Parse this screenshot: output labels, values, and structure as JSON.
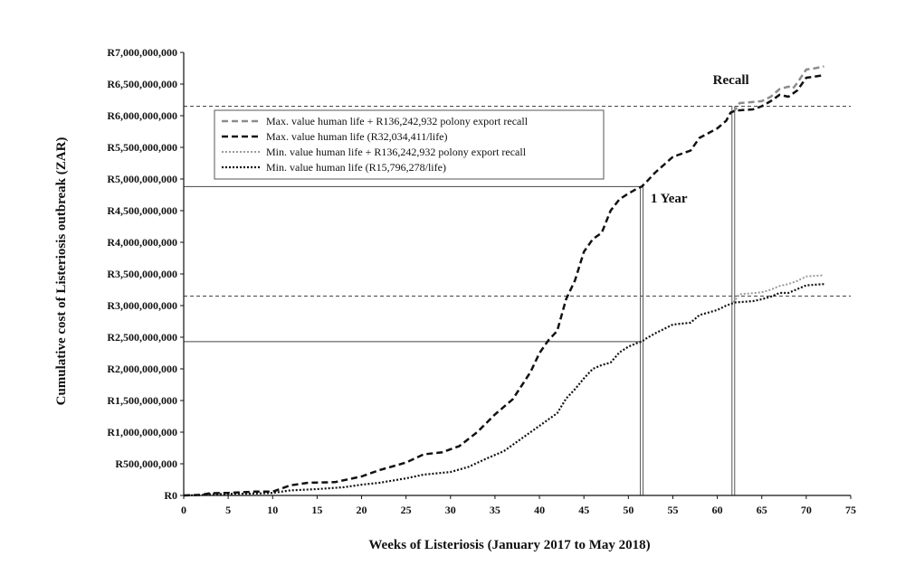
{
  "chart_data": {
    "type": "line",
    "title": "",
    "xlabel": "Weeks of Listeriosis (January 2017 to May 2018)",
    "ylabel": "Cumulative cost of Listeriosis outbreak (ZAR)",
    "xlim": [
      0,
      75
    ],
    "ylim": [
      0,
      7000000000
    ],
    "x_ticks": [
      "0",
      "5",
      "10",
      "15",
      "20",
      "25",
      "30",
      "35",
      "40",
      "45",
      "50",
      "55",
      "60",
      "65",
      "70",
      "75"
    ],
    "y_ticks": [
      "R0",
      "R500,000,000",
      "R1,000,000,000",
      "R1,500,000,000",
      "R2,000,000,000",
      "R2,500,000,000",
      "R3,000,000,000",
      "R3,500,000,000",
      "R4,000,000,000",
      "R4,500,000,000",
      "R5,000,000,000",
      "R5,500,000,000",
      "R6,000,000,000",
      "R6,500,000,000",
      "R7,000,000,000"
    ],
    "legend": {
      "position": "top-left"
    },
    "series": [
      {
        "name": "Max. value human life + R136,242,932 polony export recall",
        "color": "#8c8c8c",
        "dash": "dashed",
        "width": 2.5,
        "points": [
          [
            61.8,
            6050000000
          ],
          [
            62.5,
            6200000000
          ],
          [
            63.5,
            6210000000
          ],
          [
            65,
            6230000000
          ],
          [
            66,
            6300000000
          ],
          [
            67,
            6420000000
          ],
          [
            68,
            6460000000
          ],
          [
            68.5,
            6430000000
          ],
          [
            69,
            6520000000
          ],
          [
            70,
            6730000000
          ],
          [
            71,
            6750000000
          ],
          [
            72,
            6780000000
          ]
        ]
      },
      {
        "name": "Max. value human life (R32,034,411/life)",
        "color": "#111111",
        "dash": "dashed",
        "width": 2.5,
        "points": [
          [
            0,
            0
          ],
          [
            2,
            10000000
          ],
          [
            3,
            35000000
          ],
          [
            5,
            40000000
          ],
          [
            8,
            60000000
          ],
          [
            10,
            60000000
          ],
          [
            12,
            160000000
          ],
          [
            14,
            200000000
          ],
          [
            17,
            210000000
          ],
          [
            20,
            300000000
          ],
          [
            22,
            400000000
          ],
          [
            25,
            520000000
          ],
          [
            27,
            650000000
          ],
          [
            29,
            680000000
          ],
          [
            31,
            780000000
          ],
          [
            33,
            1000000000
          ],
          [
            35,
            1280000000
          ],
          [
            37,
            1520000000
          ],
          [
            39,
            1950000000
          ],
          [
            40,
            2250000000
          ],
          [
            41,
            2450000000
          ],
          [
            42,
            2600000000
          ],
          [
            43,
            3100000000
          ],
          [
            44,
            3400000000
          ],
          [
            45,
            3850000000
          ],
          [
            46,
            4050000000
          ],
          [
            47,
            4150000000
          ],
          [
            48,
            4500000000
          ],
          [
            49,
            4680000000
          ],
          [
            50,
            4770000000
          ],
          [
            51,
            4850000000
          ],
          [
            51.5,
            4880000000
          ],
          [
            52,
            4950000000
          ],
          [
            53,
            5100000000
          ],
          [
            55,
            5350000000
          ],
          [
            56,
            5400000000
          ],
          [
            57,
            5450000000
          ],
          [
            58,
            5650000000
          ],
          [
            60,
            5800000000
          ],
          [
            61,
            5920000000
          ],
          [
            61.5,
            6050000000
          ],
          [
            62,
            6080000000
          ],
          [
            64,
            6100000000
          ],
          [
            65,
            6150000000
          ],
          [
            66,
            6230000000
          ],
          [
            67,
            6330000000
          ],
          [
            68,
            6300000000
          ],
          [
            69,
            6400000000
          ],
          [
            70,
            6600000000
          ],
          [
            71,
            6620000000
          ],
          [
            72,
            6640000000
          ]
        ]
      },
      {
        "name": "Min. value human life + R136,242,932 polony export recall",
        "color": "#9a9a9a",
        "dash": "dotted",
        "width": 2,
        "points": [
          [
            61.8,
            3050000000
          ],
          [
            62.5,
            3180000000
          ],
          [
            63.5,
            3190000000
          ],
          [
            65,
            3210000000
          ],
          [
            66,
            3250000000
          ],
          [
            67,
            3310000000
          ],
          [
            68,
            3340000000
          ],
          [
            69,
            3390000000
          ],
          [
            70,
            3460000000
          ],
          [
            71,
            3470000000
          ],
          [
            72,
            3480000000
          ]
        ]
      },
      {
        "name": "Min. value human life (R15,796,278/life)",
        "color": "#111111",
        "dash": "dotted",
        "width": 2.2,
        "points": [
          [
            0,
            0
          ],
          [
            2,
            5000000
          ],
          [
            3,
            20000000
          ],
          [
            5,
            25000000
          ],
          [
            8,
            30000000
          ],
          [
            10,
            40000000
          ],
          [
            12,
            80000000
          ],
          [
            15,
            100000000
          ],
          [
            18,
            130000000
          ],
          [
            20,
            170000000
          ],
          [
            22,
            200000000
          ],
          [
            25,
            270000000
          ],
          [
            27,
            330000000
          ],
          [
            30,
            370000000
          ],
          [
            32,
            450000000
          ],
          [
            34,
            580000000
          ],
          [
            36,
            700000000
          ],
          [
            38,
            900000000
          ],
          [
            40,
            1100000000
          ],
          [
            42,
            1300000000
          ],
          [
            43,
            1530000000
          ],
          [
            44,
            1680000000
          ],
          [
            45,
            1850000000
          ],
          [
            46,
            2000000000
          ],
          [
            47,
            2060000000
          ],
          [
            48,
            2100000000
          ],
          [
            49,
            2260000000
          ],
          [
            50,
            2350000000
          ],
          [
            51,
            2410000000
          ],
          [
            51.5,
            2430000000
          ],
          [
            52,
            2480000000
          ],
          [
            53,
            2560000000
          ],
          [
            55,
            2700000000
          ],
          [
            57,
            2730000000
          ],
          [
            58,
            2850000000
          ],
          [
            60,
            2930000000
          ],
          [
            61,
            3000000000
          ],
          [
            62,
            3050000000
          ],
          [
            64,
            3070000000
          ],
          [
            65,
            3100000000
          ],
          [
            66,
            3140000000
          ],
          [
            67,
            3200000000
          ],
          [
            68,
            3200000000
          ],
          [
            69,
            3260000000
          ],
          [
            70,
            3320000000
          ],
          [
            71,
            3330000000
          ],
          [
            72,
            3340000000
          ]
        ]
      }
    ],
    "reference_lines": [
      {
        "kind": "h",
        "y": 6150000000,
        "x_to": 75,
        "style": "dashed"
      },
      {
        "kind": "h",
        "y": 3150000000,
        "x_to": 75,
        "style": "dashed"
      },
      {
        "kind": "h",
        "y": 4880000000,
        "x_to": 51.5,
        "style": "solid"
      },
      {
        "kind": "h",
        "y": 2430000000,
        "x_to": 51.5,
        "style": "solid"
      },
      {
        "kind": "v",
        "x": 51.5,
        "y_from": 0,
        "y_to": 4880000000,
        "style": "double"
      },
      {
        "kind": "v",
        "x": 61.8,
        "y_from": 0,
        "y_to": 6150000000,
        "style": "double"
      }
    ],
    "annotations": [
      {
        "text": "Recall",
        "x": 59.5,
        "y": 6500000000
      },
      {
        "text": "1 Year",
        "x": 52.5,
        "y": 4630000000
      }
    ]
  }
}
